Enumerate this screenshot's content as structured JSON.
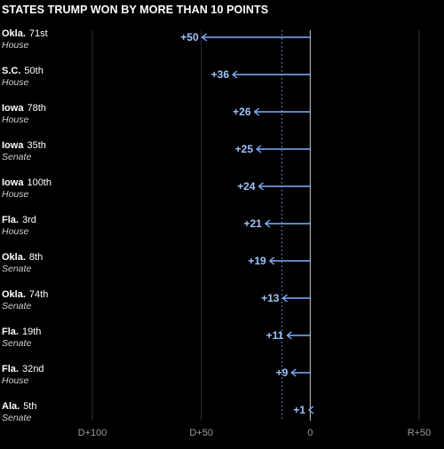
{
  "title": "STATES TRUMP WON BY MORE THAN 10 POINTS",
  "chart_data": {
    "type": "bar",
    "title": "STATES TRUMP WON BY MORE THAN 10 POINTS",
    "xlim": [
      -100,
      50
    ],
    "x_ticks": [
      {
        "value": -100,
        "label": "D+100"
      },
      {
        "value": -50,
        "label": "D+50"
      },
      {
        "value": 0,
        "label": "0"
      },
      {
        "value": 50,
        "label": "R+50"
      }
    ],
    "reference_line": {
      "value": -13,
      "style": "dotted"
    },
    "races": [
      {
        "state": "Okla.",
        "district": "71st",
        "chamber": "House",
        "label": "+50",
        "value": -50
      },
      {
        "state": "S.C.",
        "district": "50th",
        "chamber": "House",
        "label": "+36",
        "value": -36
      },
      {
        "state": "Iowa",
        "district": "78th",
        "chamber": "House",
        "label": "+26",
        "value": -26
      },
      {
        "state": "Iowa",
        "district": "35th",
        "chamber": "Senate",
        "label": "+25",
        "value": -25
      },
      {
        "state": "Iowa",
        "district": "100th",
        "chamber": "House",
        "label": "+24",
        "value": -24
      },
      {
        "state": "Fla.",
        "district": "3rd",
        "chamber": "House",
        "label": "+21",
        "value": -21
      },
      {
        "state": "Okla.",
        "district": "8th",
        "chamber": "Senate",
        "label": "+19",
        "value": -19
      },
      {
        "state": "Okla.",
        "district": "74th",
        "chamber": "Senate",
        "label": "+13",
        "value": -13
      },
      {
        "state": "Fla.",
        "district": "19th",
        "chamber": "Senate",
        "label": "+11",
        "value": -11
      },
      {
        "state": "Fla.",
        "district": "32nd",
        "chamber": "House",
        "label": "+9",
        "value": -9
      },
      {
        "state": "Ala.",
        "district": "5th",
        "chamber": "Senate",
        "label": "+1",
        "value": -1
      }
    ],
    "colors": {
      "arrow": "#7eb0ff",
      "label": "#9ec3ff",
      "grid": "#333333",
      "zero_line": "#cfcfcf",
      "reference_line": "#8aa0d8"
    }
  }
}
